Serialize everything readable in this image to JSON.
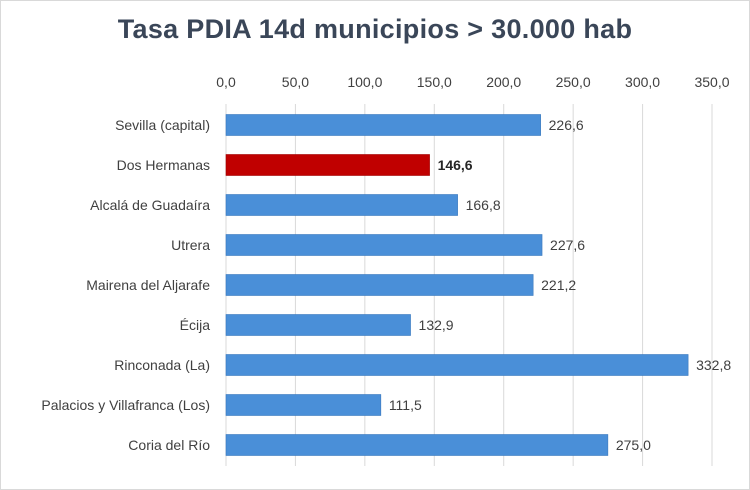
{
  "chart_data": {
    "type": "bar",
    "orientation": "horizontal",
    "title": "Tasa  PDIA  14d municipios  > 30.000 hab",
    "categories": [
      "Sevilla (capital)",
      "Dos Hermanas",
      "Alcalá de Guadaíra",
      "Utrera",
      "Mairena del Aljarafe",
      "Écija",
      "Rinconada (La)",
      "Palacios y Villafranca (Los)",
      "Coria del Río"
    ],
    "values": [
      226.6,
      146.6,
      166.8,
      227.6,
      221.2,
      132.9,
      332.8,
      111.5,
      275.0
    ],
    "value_labels": [
      "226,6",
      "146,6",
      "166,8",
      "227,6",
      "221,2",
      "132,9",
      "332,8",
      "111,5",
      "275,0"
    ],
    "highlight": "Dos Hermanas",
    "xlim": [
      0,
      350
    ],
    "ticks": [
      0,
      50,
      100,
      150,
      200,
      250,
      300,
      350
    ],
    "tick_labels": [
      "0,0",
      "50,0",
      "100,0",
      "150,0",
      "200,0",
      "250,0",
      "300,0",
      "350,0"
    ],
    "axis_position": "top",
    "grid": true,
    "colors": {
      "bar": "#4a8fd8",
      "bar_edge": "#3a78bd",
      "highlight": "#c00000",
      "grid": "#d9d9d9"
    }
  }
}
